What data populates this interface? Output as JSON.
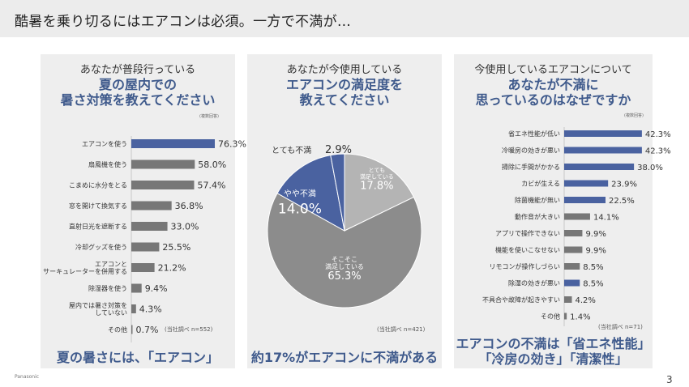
{
  "slide": {
    "title": "酷暑を乗り切るにはエアコンは必須。一方で不満が…",
    "brand": "Panasonic",
    "page": "3"
  },
  "panels": [
    {
      "subtitle": "あなたが普段行っている",
      "question_lines": [
        "夏の屋内での",
        "暑さ対策を教えてください"
      ],
      "note": "(複数回答)",
      "source": "(当社調べ n=552)",
      "conclusion_lines": [
        "夏の暑さには、「エアコン」"
      ]
    },
    {
      "subtitle": "あなたが今使用している",
      "question_lines": [
        "エアコンの満足度を",
        "教えてください"
      ],
      "source": "(当社調べ n=421)",
      "conclusion_lines": [
        "約17%がエアコンに不満がある"
      ]
    },
    {
      "subtitle": "今使用しているエアコンについて",
      "question_lines": [
        "あなたが不満に",
        "思っているのはなぜですか"
      ],
      "note": "(複数回答)",
      "source": "(当社調べ n=71)",
      "conclusion_lines": [
        "エアコンの不満は「省エネ性能」",
        "「冷房の効き」「清潔性」"
      ]
    }
  ],
  "colors": {
    "accent": "#4a62a0",
    "gray": "#777777",
    "pie_dark_gray": "#8c8c8c",
    "pie_light_gray": "#b4b4b4",
    "heading": "#3f5a8c"
  },
  "chart_data": [
    {
      "type": "bar",
      "orientation": "horizontal",
      "categories": [
        "エアコンを使う",
        "扇風機を使う",
        "こまめに水分をとる",
        "窓を開けて換気する",
        "直射日光を遮断する",
        "冷却グッズを使う",
        "エアコンと\nサーキュレーターを併用する",
        "除湿器を使う",
        "屋内では暑さ対策を\nしていない",
        "その他"
      ],
      "values": [
        76.3,
        58.0,
        57.4,
        36.8,
        33.0,
        25.5,
        21.2,
        9.4,
        4.3,
        0.7
      ],
      "value_labels": [
        "76.3%",
        "58.0%",
        "57.4%",
        "36.8%",
        "33.0%",
        "25.5%",
        "21.2%",
        "9.4%",
        "4.3%",
        "0.7%"
      ],
      "highlight": [
        true,
        false,
        false,
        false,
        false,
        false,
        false,
        false,
        false,
        false
      ],
      "xlim": [
        0,
        100
      ]
    },
    {
      "type": "pie",
      "slices": [
        {
          "label": "とても\n満足している",
          "value": 17.8,
          "value_label": "17.8%",
          "color": "#b4b4b4"
        },
        {
          "label": "そこそこ\n満足している",
          "value": 65.3,
          "value_label": "65.3%",
          "color": "#8c8c8c"
        },
        {
          "label": "やや不満",
          "value": 14.0,
          "value_label": "14.0%",
          "color": "#4a62a0"
        },
        {
          "label": "とても不満",
          "value": 2.9,
          "value_label": "2.9%",
          "color": "#4a62a0"
        }
      ]
    },
    {
      "type": "bar",
      "orientation": "horizontal",
      "categories": [
        "省エネ性能が低い",
        "冷暖房の効きが悪い",
        "掃除に手間がかかる",
        "カビが生える",
        "除菌機能が無い",
        "動作音が大きい",
        "アプリで操作できない",
        "機能を使いこなせない",
        "リモコンが操作しづらい",
        "除湿の効きが悪い",
        "不具合や故障が起きやすい",
        "その他"
      ],
      "values": [
        42.3,
        42.3,
        38.0,
        23.9,
        22.5,
        14.1,
        9.9,
        9.9,
        8.5,
        8.5,
        4.2,
        1.4
      ],
      "value_labels": [
        "42.3%",
        "42.3%",
        "38.0%",
        "23.9%",
        "22.5%",
        "14.1%",
        "9.9%",
        "9.9%",
        "8.5%",
        "8.5%",
        "4.2%",
        "1.4%"
      ],
      "highlight": [
        true,
        true,
        true,
        true,
        true,
        false,
        false,
        false,
        false,
        true,
        false,
        false
      ],
      "xlim": [
        0,
        60
      ]
    }
  ]
}
